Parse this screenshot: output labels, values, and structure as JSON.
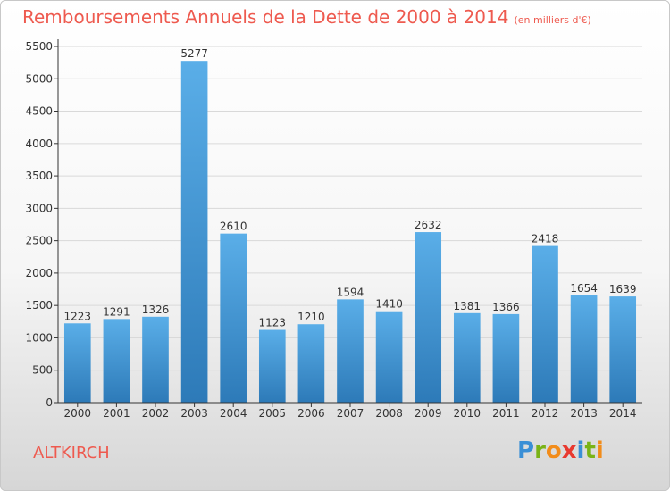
{
  "title": "Remboursements Annuels de la Dette de 2000 à 2014",
  "unit": "(en milliers d'€)",
  "commune": "ALTKIRCH",
  "logo": {
    "letters": [
      "P",
      "r",
      "o",
      "x",
      "i",
      "t",
      "i"
    ],
    "colors": [
      "#3a8fd6",
      "#7ab317",
      "#f28c1a",
      "#e8392f",
      "#3a8fd6",
      "#7ab317",
      "#f28c1a"
    ]
  },
  "colors": {
    "bar_light": "#5aaee8",
    "bar_dark": "#2d7ab8",
    "title": "#ee5a4f"
  },
  "chart_data": {
    "type": "bar",
    "title": "Remboursements Annuels de la Dette de 2000 à 2014",
    "categories": [
      "2000",
      "2001",
      "2002",
      "2003",
      "2004",
      "2005",
      "2006",
      "2007",
      "2008",
      "2009",
      "2010",
      "2011",
      "2012",
      "2013",
      "2014"
    ],
    "values": [
      1223,
      1291,
      1326,
      5277,
      2610,
      1123,
      1210,
      1594,
      1410,
      2632,
      1381,
      1366,
      2418,
      1654,
      1639
    ],
    "ylim": [
      0,
      5500
    ],
    "yticks": [
      0,
      500,
      1000,
      1500,
      2000,
      2500,
      3000,
      3500,
      4000,
      4500,
      5000,
      5500
    ],
    "grid": true
  }
}
